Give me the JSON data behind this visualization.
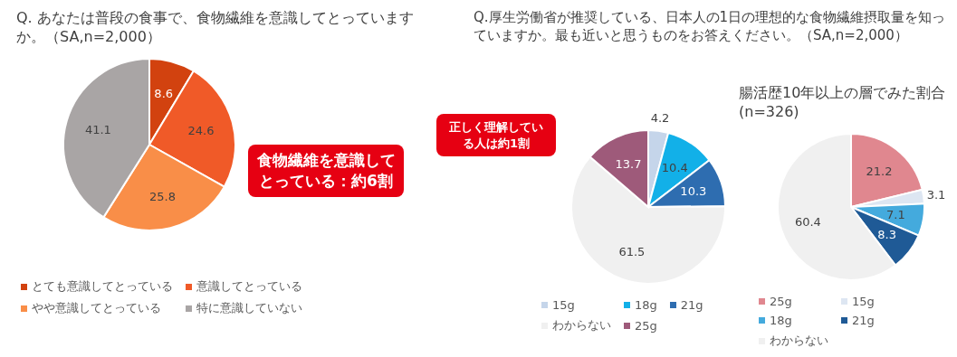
{
  "chart_data": [
    {
      "type": "pie",
      "title": "Q. あなたは普段の食事で、食物繊維を意識してとっていますか。（SA,n=2,000）",
      "categories": [
        "とても意識してとっている",
        "意識してとっている",
        "やや意識してとっている",
        "特に意識していない"
      ],
      "values": [
        8.6,
        24.6,
        25.8,
        41.1
      ],
      "colors": [
        "#d2420f",
        "#f05a28",
        "#f98e48",
        "#a9a5a5"
      ],
      "data_labels": true,
      "legend": "bottom",
      "annotations": [
        "食物繊維を意識してとっている：約6割"
      ]
    },
    {
      "type": "pie",
      "title": "Q.厚生労働省が推奨している、日本人の1日の理想的な食物繊維摂取量を知っていますか。最も近いと思うものをお答えください。（SA,n=2,000）",
      "categories": [
        "15g",
        "18g",
        "21g",
        "わからない",
        "25g"
      ],
      "values": [
        4.2,
        10.4,
        10.3,
        61.5,
        13.7
      ],
      "colors": [
        "#c5d5ea",
        "#12b0e8",
        "#2e6db0",
        "#f0f0f0",
        "#9e5a7a"
      ],
      "data_labels": true,
      "legend": "bottom",
      "annotations": [
        "正しく理解している人は約1割"
      ]
    },
    {
      "type": "pie",
      "title": "腸活歴10年以上の層でみた割合(n=326)",
      "categories": [
        "25g",
        "15g",
        "18g",
        "21g",
        "わからない"
      ],
      "values": [
        21.2,
        3.1,
        7.1,
        8.3,
        60.4
      ],
      "colors": [
        "#e0878f",
        "#dde6f2",
        "#44aadd",
        "#1f5a96",
        "#f0f0f0"
      ],
      "data_labels": true,
      "legend": "bottom"
    }
  ]
}
